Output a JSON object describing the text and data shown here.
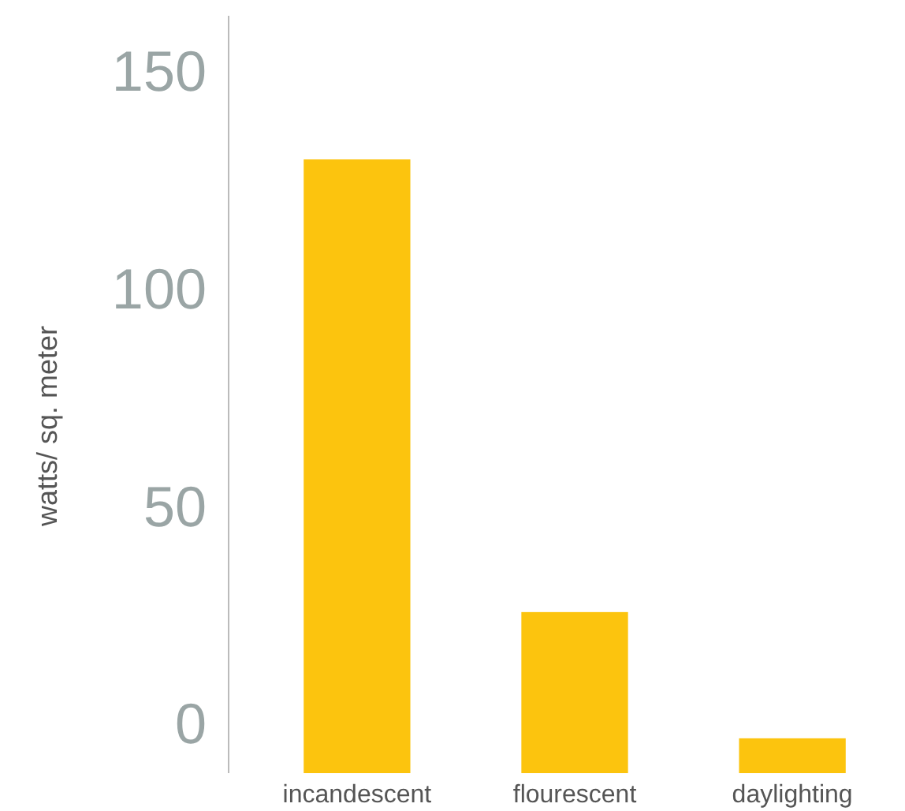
{
  "chart_data": {
    "type": "bar",
    "ylabel": "watts/ sq. meter",
    "categories": [
      "incandescent",
      "flourescent",
      "daylighting"
    ],
    "values": [
      141,
      37,
      8
    ],
    "base": [
      -11,
      -11,
      -11
    ],
    "color": "#fcc40e",
    "ylim": [
      -11,
      163
    ],
    "yticks": [
      0,
      50,
      100,
      150
    ],
    "grid": false
  }
}
